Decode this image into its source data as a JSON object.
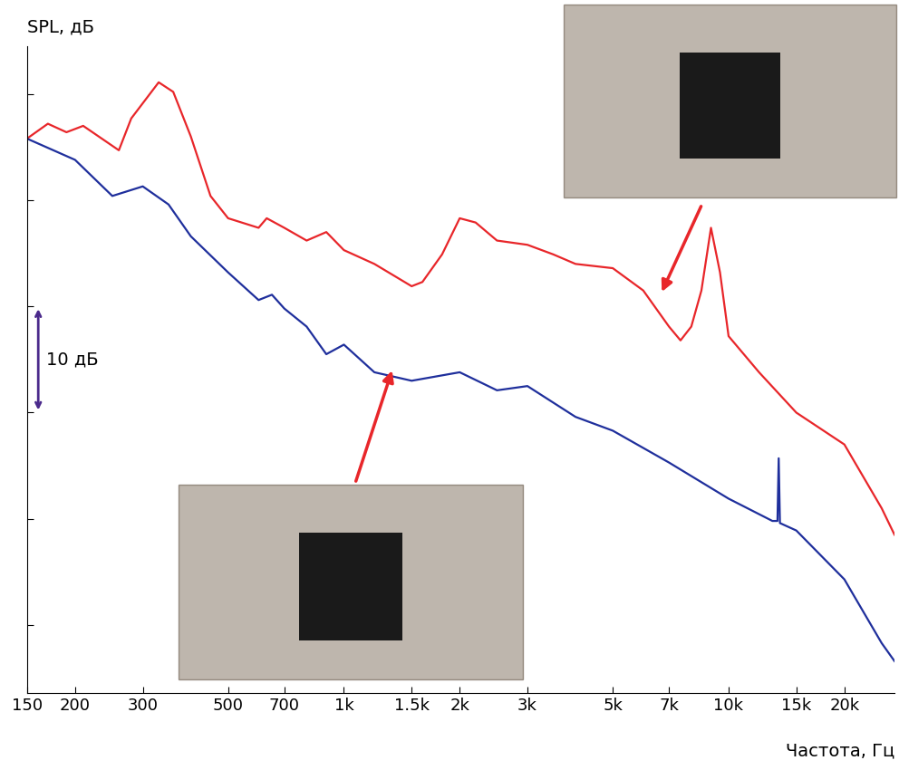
{
  "chart_data": {
    "type": "line",
    "x_label": "Частота, Гц",
    "y_label": "SPL, дБ",
    "log": "x",
    "tick_labels": "x",
    "grid": false,
    "xlim": [
      150,
      27000
    ],
    "ylim": [
      3.6,
      64.5
    ],
    "xticks": [
      150,
      200,
      300,
      500,
      700,
      {
        "value": 1000,
        "label": "1k"
      },
      {
        "value": 1500,
        "label": "1.5k"
      },
      {
        "value": 2000,
        "label": "2k"
      },
      {
        "value": 3000,
        "label": "3k"
      },
      {
        "value": 5000,
        "label": "5k"
      },
      {
        "value": 7000,
        "label": "7k"
      },
      {
        "value": 10000,
        "label": "10k"
      },
      {
        "value": 15000,
        "label": "15k"
      },
      {
        "value": 20000,
        "label": "20k"
      }
    ],
    "yticks": [
      10,
      20,
      30,
      40,
      50,
      60
    ],
    "scale_bar": {
      "label": "10 дБ",
      "from": 30,
      "to": 40
    },
    "series": [
      {
        "color": "#e8262a",
        "x": [
          150,
          170,
          190,
          210,
          260,
          280,
          330,
          360,
          400,
          450,
          500,
          600,
          630,
          700,
          800,
          900,
          1000,
          1200,
          1500,
          1600,
          1800,
          2000,
          2200,
          2500,
          3000,
          3500,
          4000,
          5000,
          6000,
          7000,
          7500,
          8000,
          8500,
          9000,
          9500,
          10000,
          12000,
          15000,
          20000,
          25000,
          27000
        ],
        "values": [
          55.8,
          57.2,
          56.4,
          57.0,
          54.7,
          57.7,
          61.1,
          60.2,
          56.0,
          50.4,
          48.3,
          47.4,
          48.3,
          47.4,
          46.2,
          47.0,
          45.3,
          44.0,
          41.9,
          42.3,
          44.9,
          48.3,
          47.9,
          46.2,
          45.8,
          44.9,
          44.0,
          43.6,
          41.5,
          38.1,
          36.8,
          38.1,
          41.5,
          47.4,
          43.2,
          37.2,
          33.8,
          30.0,
          27.0,
          21.0,
          18.5
        ]
      },
      {
        "color": "#1f2f9c",
        "x": [
          150,
          200,
          250,
          300,
          350,
          400,
          500,
          600,
          650,
          700,
          800,
          900,
          1000,
          1200,
          1500,
          2000,
          2500,
          3000,
          4000,
          5000,
          7000,
          10000,
          13000,
          13400,
          13500,
          13600,
          15000,
          20000,
          25000,
          27000
        ],
        "values": [
          55.8,
          53.8,
          50.4,
          51.3,
          49.6,
          46.6,
          43.2,
          40.6,
          41.1,
          39.8,
          38.1,
          35.5,
          36.4,
          33.8,
          33.0,
          33.8,
          32.1,
          32.5,
          29.6,
          28.3,
          25.3,
          21.9,
          19.8,
          19.8,
          25.7,
          19.6,
          18.9,
          14.3,
          8.3,
          6.6
        ]
      }
    ]
  }
}
